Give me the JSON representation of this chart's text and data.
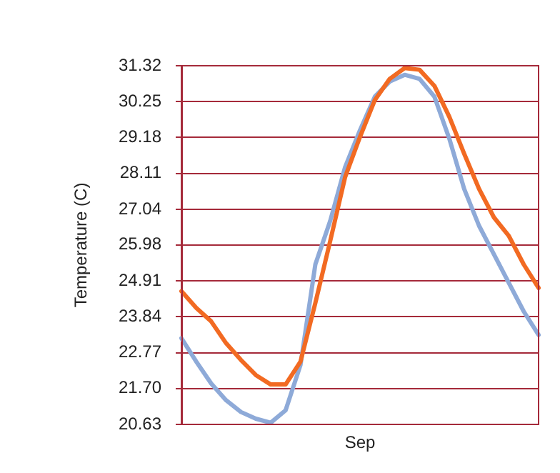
{
  "chart_data": {
    "type": "line",
    "ylabel": "Temperature (C)",
    "categories": [
      null,
      null,
      null,
      null,
      null,
      null,
      null,
      null,
      null,
      null,
      null,
      null,
      "Sep",
      null,
      null,
      null,
      null,
      null,
      null,
      null,
      null,
      null,
      null,
      null,
      null
    ],
    "series": [
      {
        "color": "#f26a22",
        "values": [
          24.6,
          24.1,
          23.7,
          23.05,
          22.55,
          22.1,
          21.82,
          21.82,
          22.5,
          24.25,
          26.1,
          28.0,
          29.2,
          30.3,
          30.93,
          31.25,
          31.2,
          30.72,
          29.8,
          28.7,
          27.65,
          26.8,
          26.25,
          25.4,
          24.7
        ]
      },
      {
        "color": "#8eaad8",
        "values": [
          23.2,
          22.5,
          21.85,
          21.35,
          21.0,
          20.8,
          20.68,
          21.05,
          22.4,
          25.4,
          26.7,
          28.3,
          29.4,
          30.4,
          30.85,
          31.05,
          30.93,
          30.4,
          29.15,
          27.65,
          26.55,
          25.7,
          24.85,
          24.0,
          23.3
        ]
      }
    ],
    "ylim": [
      20.63,
      31.32
    ],
    "yticks": [
      20.63,
      {
        "value": 21.7,
        "label": "21.70"
      },
      22.77,
      23.84,
      24.91,
      25.98,
      27.04,
      28.11,
      29.18,
      30.25,
      31.32
    ],
    "grid": "y",
    "legend": false,
    "marker": "none",
    "line_style": "solid"
  }
}
